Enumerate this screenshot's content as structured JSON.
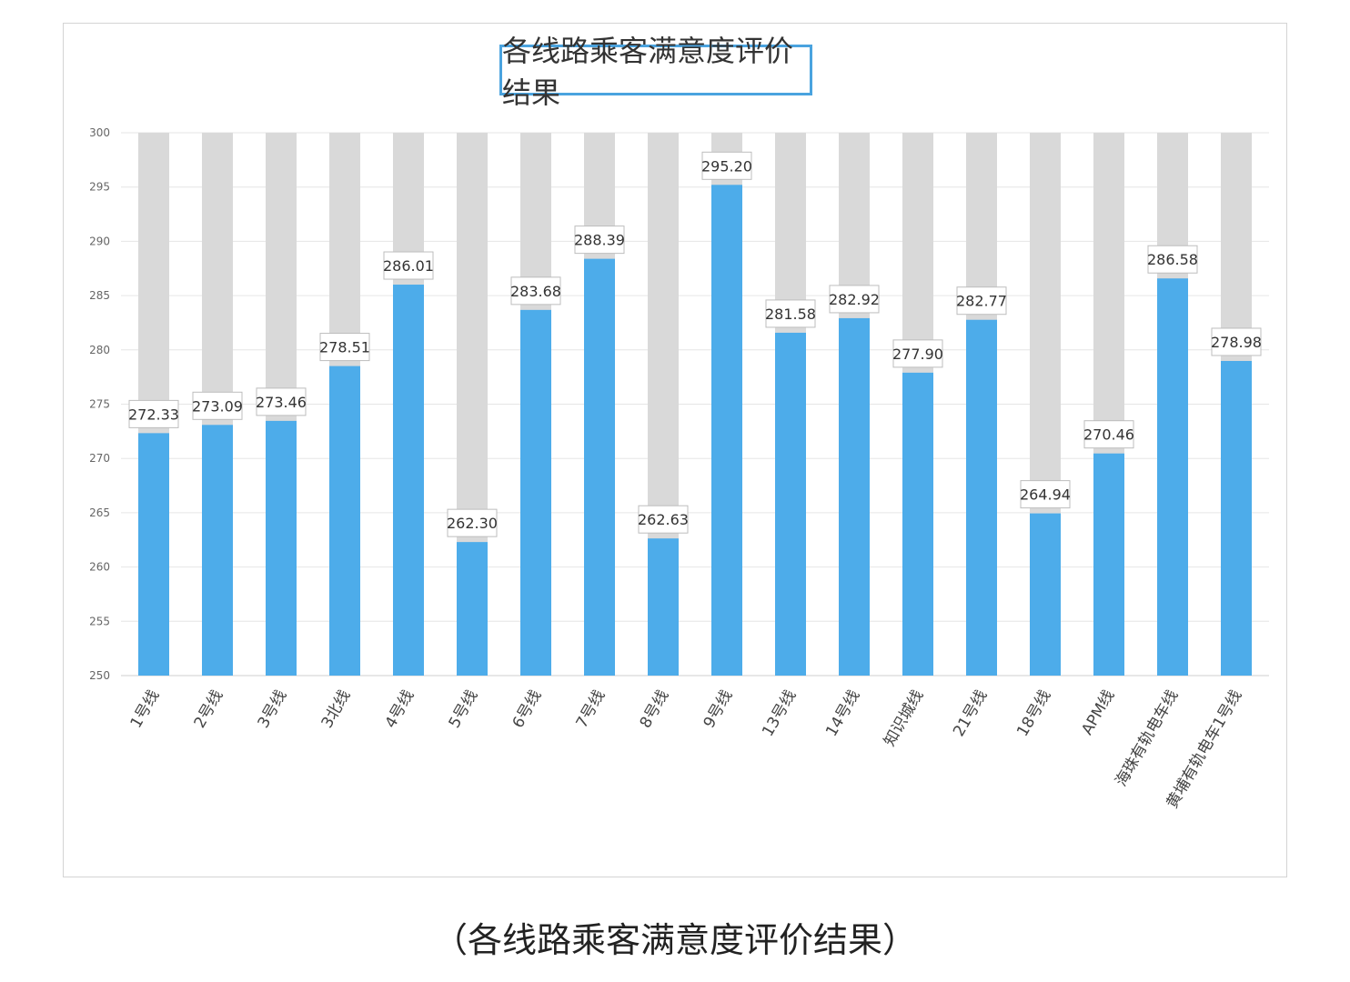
{
  "caption": "（各线路乘客满意度评价结果）",
  "chart_data": {
    "type": "bar",
    "title": "各线路乘客满意度评价结果",
    "xlabel": "",
    "ylabel": "",
    "ylim": [
      250,
      300
    ],
    "yticks": [
      250,
      255,
      260,
      265,
      270,
      275,
      280,
      285,
      290,
      295,
      300
    ],
    "grid": true,
    "legend": "none",
    "background_bar_max": 300,
    "colors": {
      "bar": "#4dacea",
      "background_bar": "#d9d9d9",
      "grid": "#e6e6e6"
    },
    "categories": [
      "1号线",
      "2号线",
      "3号线",
      "3北线",
      "4号线",
      "5号线",
      "6号线",
      "7号线",
      "8号线",
      "9号线",
      "13号线",
      "14号线",
      "知识城线",
      "21号线",
      "18号线",
      "APM线",
      "海珠有轨电车线",
      "黄埔有轨电车1号线"
    ],
    "values": [
      272.33,
      273.09,
      273.46,
      278.51,
      286.01,
      262.3,
      283.68,
      288.39,
      262.63,
      295.2,
      281.58,
      282.92,
      277.9,
      282.77,
      264.94,
      270.46,
      286.58,
      278.98
    ],
    "value_labels": [
      "272.33",
      "273.09",
      "273.46",
      "278.51",
      "286.01",
      "262.30",
      "283.68",
      "288.39",
      "262.63",
      "295.20",
      "281.58",
      "282.92",
      "277.90",
      "282.77",
      "264.94",
      "270.46",
      "286.58",
      "278.98"
    ]
  }
}
